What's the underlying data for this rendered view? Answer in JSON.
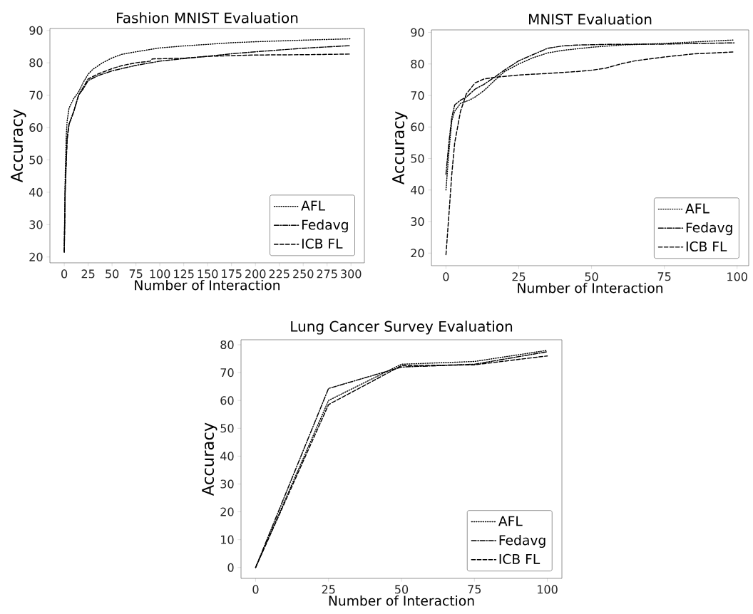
{
  "chart_data": [
    {
      "type": "line",
      "title": "Fashion MNIST Evaluation",
      "xlabel": "Number of Interaction",
      "ylabel": "Accuracy",
      "xlim": [
        -15,
        314
      ],
      "ylim": [
        18.2,
        90.6
      ],
      "xticks": [
        0,
        25,
        50,
        75,
        100,
        125,
        150,
        175,
        200,
        225,
        250,
        275,
        300
      ],
      "yticks": [
        20,
        30,
        40,
        50,
        60,
        70,
        80,
        90
      ],
      "legend": "bottom right",
      "series": [
        {
          "name": "AFL",
          "color": "#000000",
          "line_style": "dotted",
          "x": [
            0,
            1,
            2,
            3,
            5,
            10,
            15,
            20,
            25,
            30,
            40,
            50,
            60,
            75,
            100,
            125,
            150,
            175,
            200,
            250,
            299
          ],
          "values": [
            22,
            45,
            57,
            62,
            66,
            69,
            71,
            74,
            76.5,
            78,
            80,
            81.5,
            82.6,
            83.4,
            84.6,
            85.2,
            85.7,
            86.2,
            86.5,
            87,
            87.4
          ]
        },
        {
          "name": "Fedavg",
          "color": "#000000",
          "line_style": "dashdot",
          "x": [
            0,
            1,
            3,
            5,
            10,
            15,
            20,
            25,
            35,
            50,
            75,
            100,
            125,
            150,
            175,
            200,
            250,
            299
          ],
          "values": [
            21.5,
            40,
            57,
            61,
            65,
            70,
            72,
            74.5,
            76,
            77.5,
            79.2,
            80.5,
            81.3,
            82,
            82.8,
            83.4,
            84.5,
            85.3
          ]
        },
        {
          "name": "ICB FL",
          "color": "#000000",
          "line_style": "dashed",
          "x": [
            0,
            1,
            3,
            5,
            10,
            15,
            20,
            25,
            35,
            50,
            60,
            75,
            90,
            92,
            125,
            150,
            175,
            200,
            250,
            299
          ],
          "values": [
            21.5,
            42,
            56,
            61,
            65,
            70,
            72.5,
            75,
            76.5,
            78.2,
            79.1,
            80,
            80.5,
            81.2,
            81.4,
            82,
            82.2,
            82.4,
            82.5,
            82.7
          ]
        }
      ]
    },
    {
      "type": "line",
      "title": "MNIST Evaluation",
      "xlabel": "Number of Interaction",
      "ylabel": "Accuracy",
      "xlim": [
        -5,
        104
      ],
      "ylim": [
        16,
        90.8
      ],
      "xticks": [
        0,
        25,
        50,
        75,
        100
      ],
      "yticks": [
        20,
        30,
        40,
        50,
        60,
        70,
        80,
        90
      ],
      "legend": "bottom right",
      "series": [
        {
          "name": "AFL",
          "color": "#000000",
          "line_style": "dotted",
          "x": [
            0,
            1,
            2,
            3,
            5,
            8,
            10,
            13,
            17,
            20,
            25,
            30,
            35,
            40,
            50,
            60,
            75,
            90,
            99
          ],
          "values": [
            40,
            52,
            62,
            65,
            67.5,
            68.5,
            69.5,
            71.5,
            75,
            77.5,
            80,
            82,
            83.5,
            84.3,
            85.3,
            86,
            86.5,
            87.2,
            87.6
          ]
        },
        {
          "name": "Fedavg",
          "color": "#000000",
          "line_style": "dashdot",
          "x": [
            0,
            1,
            2,
            3,
            5,
            7,
            10,
            13,
            17,
            20,
            25,
            30,
            35,
            40,
            45,
            55,
            75,
            99
          ],
          "values": [
            45,
            55,
            63,
            67,
            68.5,
            69.5,
            72,
            73.5,
            76,
            78,
            81,
            83,
            85,
            85.7,
            86,
            86.2,
            86.3,
            86.7
          ]
        },
        {
          "name": "ICB FL",
          "color": "#000000",
          "line_style": "dashed",
          "x": [
            0,
            1,
            2,
            3,
            5,
            7,
            10,
            13,
            17,
            25,
            35,
            45,
            50,
            55,
            60,
            65,
            75,
            85,
            99
          ],
          "values": [
            19.5,
            32,
            45,
            55,
            65,
            70.5,
            74,
            75.2,
            75.8,
            76.5,
            77,
            77.6,
            78,
            78.7,
            80,
            81,
            82.2,
            83.2,
            83.8
          ]
        }
      ]
    },
    {
      "type": "line",
      "title": "Lung Cancer Survey Evaluation",
      "xlabel": "Number of Interaction",
      "ylabel": "Accuracy",
      "xlim": [
        -5,
        105
      ],
      "ylim": [
        -3.9,
        81.8
      ],
      "xticks": [
        0,
        25,
        50,
        75,
        100
      ],
      "yticks": [
        0,
        10,
        20,
        30,
        40,
        50,
        60,
        70,
        80
      ],
      "legend": "bottom right",
      "series": [
        {
          "name": "AFL",
          "color": "#000000",
          "line_style": "dotted",
          "x": [
            0,
            25,
            50,
            75,
            100
          ],
          "values": [
            0,
            60,
            73,
            74,
            78
          ]
        },
        {
          "name": "Fedavg",
          "color": "#000000",
          "line_style": "dashdot",
          "x": [
            0,
            25,
            50,
            75,
            100
          ],
          "values": [
            0,
            64.3,
            72,
            73,
            77.5
          ]
        },
        {
          "name": "ICB FL",
          "color": "#000000",
          "line_style": "dashed",
          "x": [
            0,
            25,
            50,
            75,
            100
          ],
          "values": [
            0,
            58.5,
            72.5,
            72.8,
            76
          ]
        }
      ]
    }
  ]
}
